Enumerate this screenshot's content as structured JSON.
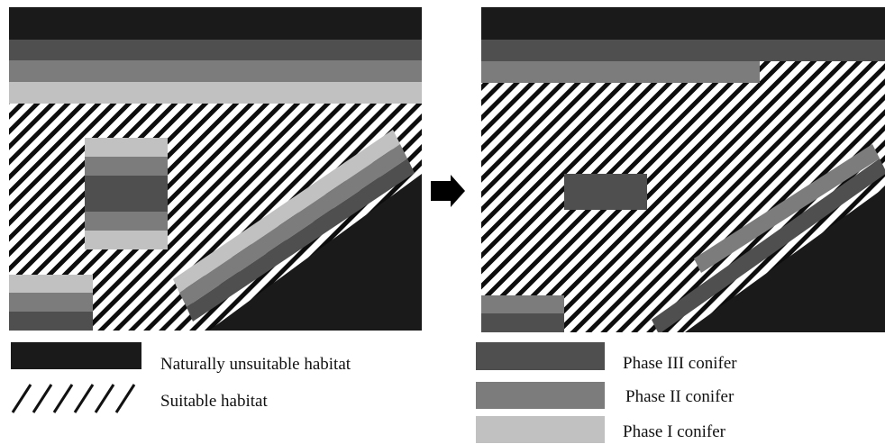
{
  "colors": {
    "unsuitable": "#1a1a1a",
    "phase3": "#4f4f4f",
    "phase2": "#7c7c7c",
    "phase1": "#c1c1c1",
    "hatch": "#0d0d0d",
    "background": "#ffffff",
    "arrow": "#000000"
  },
  "legend": {
    "unsuitable_label": "Naturally unsuitable habitat",
    "suitable_label": "Suitable habitat",
    "phase3_label": "Phase III conifer",
    "phase2_label": "Phase II conifer",
    "phase1_label": "Phase I conifer"
  },
  "arrow_icon": "right-arrow-icon"
}
